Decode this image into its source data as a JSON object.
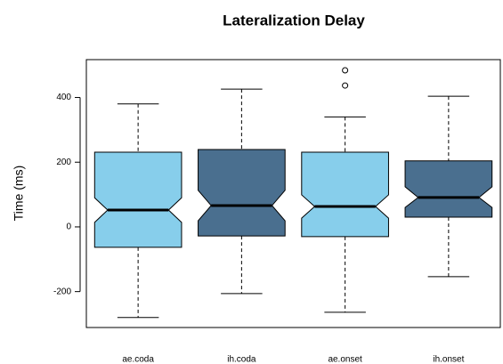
{
  "chart_data": {
    "type": "boxplot",
    "title": "Lateralization Delay",
    "ylabel": "Time (ms)",
    "categories": [
      "ae.coda",
      "ih.coda",
      "ae.onset",
      "ih.onset"
    ],
    "colors": [
      "#87ceeb",
      "#4a6f8f",
      "#87ceeb",
      "#4a6f8f"
    ],
    "min": [
      -280,
      -206,
      -264,
      -154
    ],
    "q1": [
      -63,
      -28,
      -30,
      30
    ],
    "median": [
      52,
      66,
      63,
      91
    ],
    "q3": [
      231,
      239,
      231,
      204
    ],
    "max": [
      380,
      426,
      340,
      404
    ],
    "notch_low": [
      14,
      19,
      27,
      60
    ],
    "notch_high": [
      90,
      113,
      99,
      124
    ],
    "outliers": [
      [],
      [],
      [
        437,
        484
      ],
      []
    ],
    "ylim": [
      -311,
      517
    ],
    "yticks": [
      -200,
      0,
      200,
      400
    ],
    "notched": true
  }
}
